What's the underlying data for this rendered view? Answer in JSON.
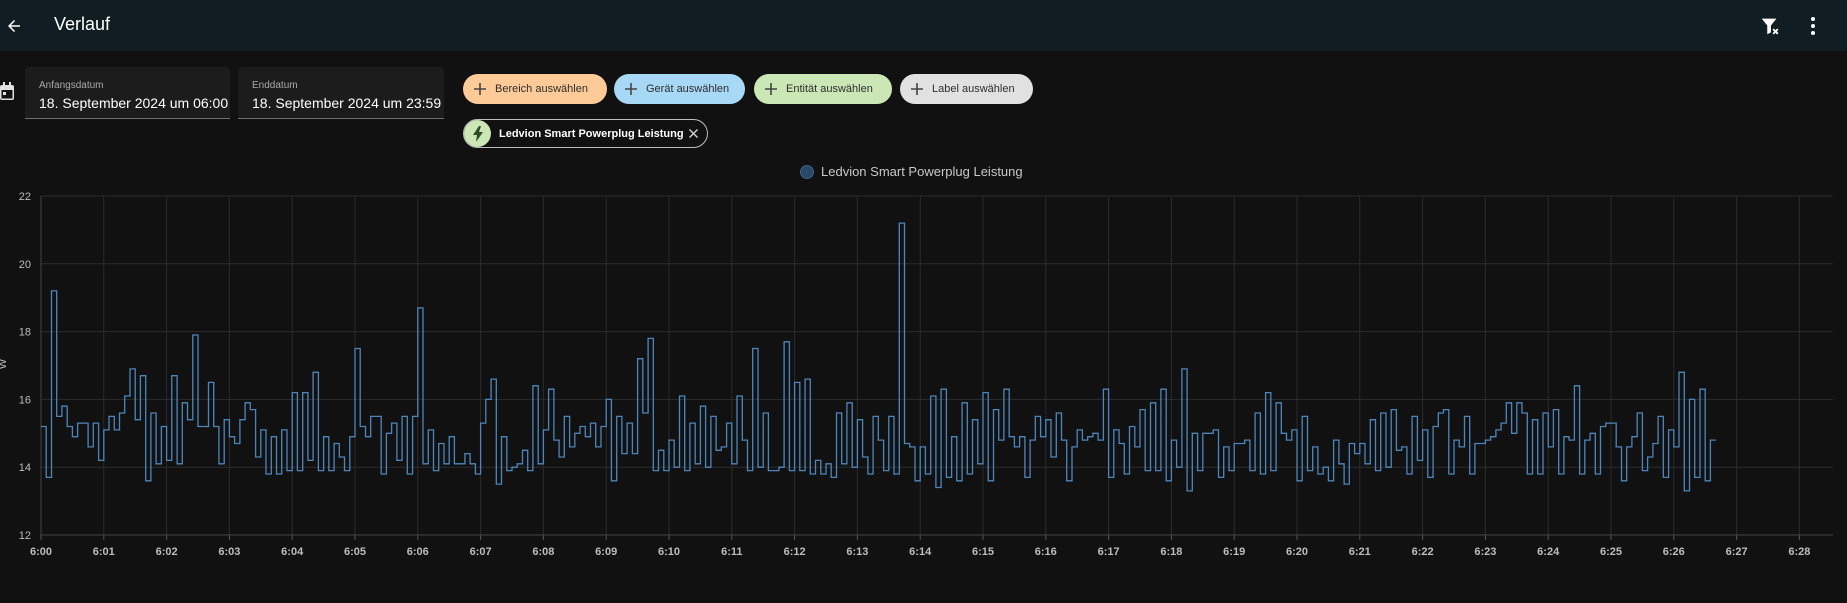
{
  "header": {
    "title": "Verlauf"
  },
  "date_range": {
    "start_label": "Anfangsdatum",
    "start_value": "18. September 2024 um 06:00",
    "end_label": "Enddatum",
    "end_value": "18. September 2024 um 23:59"
  },
  "chips": {
    "area": "Bereich auswählen",
    "device": "Gerät auswählen",
    "entity": "Entität auswählen",
    "label": "Label auswählen"
  },
  "selected_entity": "Ledvion Smart Powerplug Leistung",
  "colors": {
    "series": "#4d86bd",
    "area_chip": "#fecb98",
    "device_chip": "#a7d8f5",
    "entity_chip": "#cce7b6",
    "label_chip": "#e1e1e1"
  },
  "chart_data": {
    "type": "line",
    "step": true,
    "ylabel": "W",
    "ylim": [
      12,
      22
    ],
    "yticks": [
      12,
      14,
      16,
      18,
      20,
      22
    ],
    "xlim_minutes": [
      0,
      28.5
    ],
    "xticks": [
      "6:00",
      "6:01",
      "6:02",
      "6:03",
      "6:04",
      "6:05",
      "6:06",
      "6:07",
      "6:08",
      "6:09",
      "6:10",
      "6:11",
      "6:12",
      "6:13",
      "6:14",
      "6:15",
      "6:16",
      "6:17",
      "6:18",
      "6:19",
      "6:20",
      "6:21",
      "6:22",
      "6:23",
      "6:24",
      "6:25",
      "6:26",
      "6:27",
      "6:28"
    ],
    "grid": true,
    "legend": "top-center",
    "series": [
      {
        "name": "Ledvion Smart Powerplug Leistung",
        "sample_interval_s": 5,
        "values": [
          15.2,
          13.7,
          19.2,
          15.5,
          15.8,
          15.2,
          14.9,
          15.3,
          15.3,
          14.6,
          15.3,
          14.2,
          15.1,
          15.5,
          15.1,
          15.6,
          16.1,
          16.9,
          15.4,
          16.7,
          13.6,
          15.6,
          14.1,
          15.2,
          14.2,
          16.7,
          14.1,
          15.9,
          15.4,
          17.9,
          15.2,
          15.2,
          16.5,
          15.2,
          14.1,
          15.4,
          14.9,
          14.7,
          15.4,
          15.9,
          15.7,
          14.3,
          15.1,
          13.8,
          14.9,
          13.8,
          15.1,
          13.9,
          16.2,
          13.9,
          16.2,
          14.2,
          16.8,
          13.9,
          14.9,
          13.9,
          14.7,
          14.3,
          13.9,
          14.9,
          17.5,
          15.2,
          14.9,
          15.5,
          15.5,
          13.8,
          15.0,
          15.3,
          14.2,
          15.5,
          13.8,
          15.5,
          18.7,
          14.1,
          15.1,
          13.9,
          14.7,
          14.1,
          14.9,
          14.1,
          14.1,
          14.4,
          14.1,
          13.8,
          15.3,
          16.0,
          16.6,
          13.5,
          14.9,
          13.9,
          14.0,
          14.1,
          14.5,
          13.9,
          16.4,
          14.1,
          15.1,
          16.3,
          14.8,
          14.3,
          15.5,
          14.6,
          15.0,
          15.2,
          14.9,
          15.3,
          14.6,
          15.2,
          16.0,
          13.6,
          15.5,
          14.4,
          15.3,
          14.4,
          17.2,
          15.6,
          17.8,
          13.9,
          14.5,
          13.9,
          14.8,
          14.0,
          16.1,
          13.9,
          15.3,
          14.1,
          15.8,
          14.0,
          15.5,
          14.5,
          14.6,
          15.3,
          14.1,
          16.1,
          14.8,
          13.9,
          17.5,
          14.0,
          15.6,
          13.9,
          13.9,
          14.0,
          17.7,
          13.9,
          16.5,
          13.9,
          16.6,
          13.8,
          14.2,
          13.8,
          14.1,
          13.7,
          15.6,
          14.1,
          15.9,
          14.0,
          15.4,
          14.3,
          13.8,
          15.5,
          14.8,
          13.9,
          15.5,
          13.8,
          21.2,
          14.7,
          14.6,
          13.6,
          14.6,
          13.8,
          16.1,
          13.4,
          16.3,
          13.7,
          14.9,
          13.6,
          15.9,
          13.8,
          15.4,
          14.1,
          16.2,
          13.6,
          15.7,
          14.8,
          16.3,
          14.9,
          14.6,
          14.9,
          13.7,
          14.8,
          15.5,
          14.9,
          15.4,
          14.3,
          15.6,
          14.8,
          13.6,
          14.6,
          15.1,
          14.8,
          14.9,
          15.0,
          14.8,
          16.3,
          13.7,
          15.1,
          14.7,
          13.8,
          15.2,
          14.6,
          15.7,
          13.9,
          15.9,
          13.9,
          16.3,
          13.6,
          14.8,
          14.0,
          16.9,
          13.3,
          15.0,
          13.9,
          15.0,
          15.0,
          15.1,
          13.7,
          14.6,
          13.9,
          14.7,
          14.7,
          14.8,
          13.9,
          15.6,
          13.8,
          16.2,
          13.9,
          15.9,
          15.0,
          14.8,
          15.1,
          13.6,
          15.5,
          13.9,
          14.6,
          13.8,
          14.0,
          13.6,
          14.8,
          14.1,
          13.5,
          14.7,
          14.4,
          14.7,
          14.1,
          15.4,
          13.9,
          15.6,
          14.0,
          15.7,
          14.5,
          14.6,
          13.8,
          15.5,
          14.2,
          15.1,
          13.7,
          15.2,
          15.6,
          15.7,
          13.8,
          14.8,
          14.6,
          15.5,
          13.8,
          14.7,
          14.7,
          14.8,
          14.9,
          15.1,
          15.3,
          15.9,
          15.0,
          15.9,
          15.6,
          13.8,
          15.4,
          13.8,
          15.6,
          14.6,
          15.7,
          13.8,
          14.9,
          14.8,
          16.4,
          13.8,
          14.8,
          15.0,
          13.8,
          15.2,
          15.3,
          15.3,
          14.6,
          13.6,
          14.6,
          14.9,
          15.6,
          13.9,
          14.3,
          14.7,
          15.5,
          13.7,
          15.1,
          14.6,
          16.8,
          13.3,
          16.0,
          13.7,
          16.3,
          13.6,
          14.8
        ]
      }
    ]
  }
}
